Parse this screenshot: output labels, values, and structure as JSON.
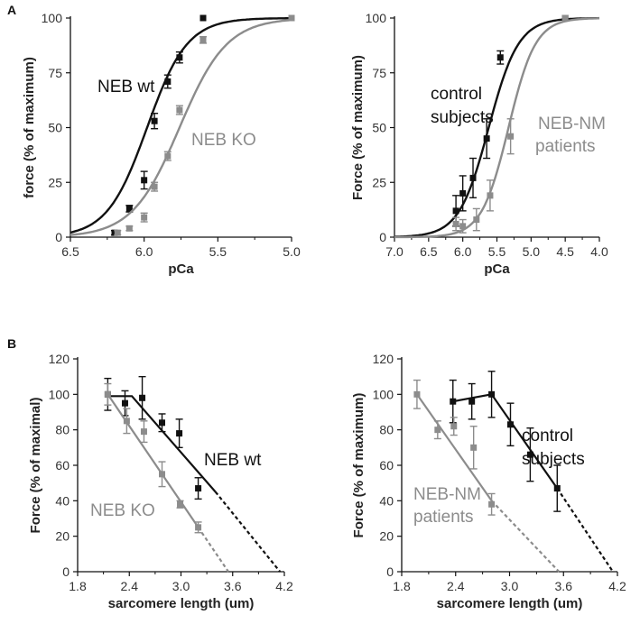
{
  "panel_labels": [
    "A",
    "B"
  ],
  "colors": {
    "black": "#111111",
    "gray": "#8c8c8c"
  },
  "chart_data": [
    {
      "type": "scatter",
      "id": "A1",
      "xlabel": "pCa",
      "ylabel": "force (% of maximum)",
      "xlim": [
        6.5,
        5.0
      ],
      "ylim": [
        0,
        100
      ],
      "xticks": [
        "6.5",
        "6.0",
        "5.5",
        "5.0"
      ],
      "yticks": [
        "0",
        "25",
        "50",
        "75",
        "100"
      ],
      "series": [
        {
          "name": "NEB wt",
          "color": "black",
          "marker": "square",
          "fit": {
            "kind": "hill",
            "pca50": 5.98,
            "n": 3.2
          },
          "x": [
            6.2,
            6.1,
            6.0,
            5.93,
            5.84,
            5.76,
            5.6
          ],
          "y": [
            2,
            13,
            26,
            53,
            71,
            82,
            100
          ],
          "err": [
            1,
            1.5,
            4,
            3.5,
            3,
            2.5,
            0
          ]
        },
        {
          "name": "NEB KO",
          "color": "gray",
          "marker": "square",
          "fit": {
            "kind": "hill",
            "pca50": 5.76,
            "n": 2.7
          },
          "x": [
            6.18,
            6.1,
            6.0,
            5.93,
            5.84,
            5.76,
            5.6,
            5.0
          ],
          "y": [
            2,
            4,
            9,
            23,
            37,
            58,
            90,
            100
          ],
          "err": [
            1,
            1,
            2,
            2,
            2,
            2,
            1.5,
            0
          ]
        }
      ],
      "annotations": [
        {
          "text": "NEB wt",
          "series": 0
        },
        {
          "text": "NEB KO",
          "series": 1
        }
      ]
    },
    {
      "type": "scatter",
      "id": "A2",
      "xlabel": "pCa",
      "ylabel": "Force (% of maximum)",
      "xlim": [
        7.0,
        4.0
      ],
      "ylim": [
        0,
        100
      ],
      "xticks": [
        "7.0",
        "6.5",
        "6.0",
        "5.5",
        "5.0",
        "4.5",
        "4.0"
      ],
      "yticks": [
        "0",
        "25",
        "50",
        "75",
        "100"
      ],
      "series": [
        {
          "name": "control subjects",
          "color": "black",
          "marker": "square",
          "fit": {
            "kind": "hill",
            "pca50": 5.62,
            "n": 2.0
          },
          "x": [
            6.1,
            6.0,
            5.85,
            5.65,
            5.45,
            4.5
          ],
          "y": [
            12,
            20,
            27,
            45,
            82,
            100
          ],
          "err": [
            7,
            8,
            9,
            9,
            3,
            0
          ]
        },
        {
          "name": "NEB-NM patients",
          "color": "gray",
          "marker": "square",
          "fit": {
            "kind": "hill",
            "pca50": 5.33,
            "n": 2.2
          },
          "x": [
            6.1,
            6.0,
            5.8,
            5.6,
            5.3,
            4.5
          ],
          "y": [
            6,
            5,
            8,
            19,
            46,
            100
          ],
          "err": [
            3,
            3,
            5,
            7,
            8,
            0
          ]
        }
      ],
      "annotations": [
        {
          "text": "control",
          "series": 0
        },
        {
          "text": "subjects",
          "series": 0
        },
        {
          "text": "NEB-NM",
          "series": 1
        },
        {
          "text": "patients",
          "series": 1
        }
      ]
    },
    {
      "type": "scatter",
      "id": "B1",
      "xlabel": "sarcomere length (um)",
      "ylabel": "Force (% of maximal)",
      "xlim": [
        1.8,
        4.2
      ],
      "ylim": [
        0,
        120
      ],
      "xticks": [
        "1.8",
        "2.4",
        "3.0",
        "3.6",
        "4.2"
      ],
      "yticks": [
        "0",
        "20",
        "40",
        "60",
        "80",
        "100",
        "120"
      ],
      "series": [
        {
          "name": "NEB wt",
          "color": "black",
          "marker": "square",
          "x": [
            2.15,
            2.35,
            2.55,
            2.78,
            2.98,
            3.2
          ],
          "y": [
            100,
            95,
            98,
            84,
            78,
            47
          ],
          "err": [
            9,
            7,
            12,
            5,
            8,
            6
          ],
          "lines": [
            {
              "style": "solid",
              "x": [
                2.15,
                2.43,
                3.4
              ],
              "y": [
                99,
                99,
                45
              ]
            },
            {
              "style": "dashed",
              "x": [
                3.4,
                4.15
              ],
              "y": [
                45,
                0
              ]
            }
          ]
        },
        {
          "name": "NEB KO",
          "color": "gray",
          "marker": "square",
          "x": [
            2.15,
            2.37,
            2.57,
            2.78,
            2.99,
            3.2
          ],
          "y": [
            100,
            85,
            79,
            55,
            38,
            25
          ],
          "err": [
            6,
            7,
            6,
            7,
            2,
            3
          ],
          "lines": [
            {
              "style": "solid",
              "x": [
                2.15,
                3.2
              ],
              "y": [
                100,
                25
              ]
            },
            {
              "style": "dashed",
              "x": [
                3.2,
                3.55
              ],
              "y": [
                25,
                0
              ]
            }
          ]
        }
      ],
      "annotations": [
        {
          "text": "NEB wt",
          "series": 0
        },
        {
          "text": "NEB KO",
          "series": 1
        }
      ]
    },
    {
      "type": "scatter",
      "id": "B2",
      "xlabel": "sarcomere length (um)",
      "ylabel": "Force (% of maximum)",
      "xlim": [
        1.8,
        4.2
      ],
      "ylim": [
        0,
        120
      ],
      "xticks": [
        "1.8",
        "2.4",
        "3.0",
        "3.6",
        "4.2"
      ],
      "yticks": [
        "0",
        "20",
        "40",
        "60",
        "80",
        "100",
        "120"
      ],
      "series": [
        {
          "name": "control subjects",
          "color": "black",
          "marker": "square",
          "x": [
            2.37,
            2.58,
            2.8,
            3.01,
            3.23,
            3.53
          ],
          "y": [
            96,
            96,
            100,
            83,
            66,
            47
          ],
          "err": [
            12,
            10,
            13,
            12,
            15,
            13
          ],
          "lines": [
            {
              "style": "solid",
              "x": [
                2.37,
                2.8,
                3.53
              ],
              "y": [
                96,
                100,
                47
              ]
            },
            {
              "style": "dashed",
              "x": [
                3.53,
                4.15
              ],
              "y": [
                47,
                0
              ]
            }
          ]
        },
        {
          "name": "NEB-NM patients",
          "color": "gray",
          "marker": "square",
          "x": [
            1.97,
            2.2,
            2.38,
            2.6,
            2.8
          ],
          "y": [
            100,
            80,
            82,
            70,
            38
          ],
          "err": [
            8,
            5,
            5,
            12,
            6
          ],
          "lines": [
            {
              "style": "solid",
              "x": [
                1.97,
                2.8
              ],
              "y": [
                100,
                40
              ]
            },
            {
              "style": "dashed",
              "x": [
                2.8,
                3.55
              ],
              "y": [
                40,
                0
              ]
            }
          ]
        }
      ],
      "annotations": [
        {
          "text": "control",
          "series": 0
        },
        {
          "text": "subjects",
          "series": 0
        },
        {
          "text": "NEB-NM",
          "series": 1
        },
        {
          "text": "patients",
          "series": 1
        }
      ]
    }
  ]
}
